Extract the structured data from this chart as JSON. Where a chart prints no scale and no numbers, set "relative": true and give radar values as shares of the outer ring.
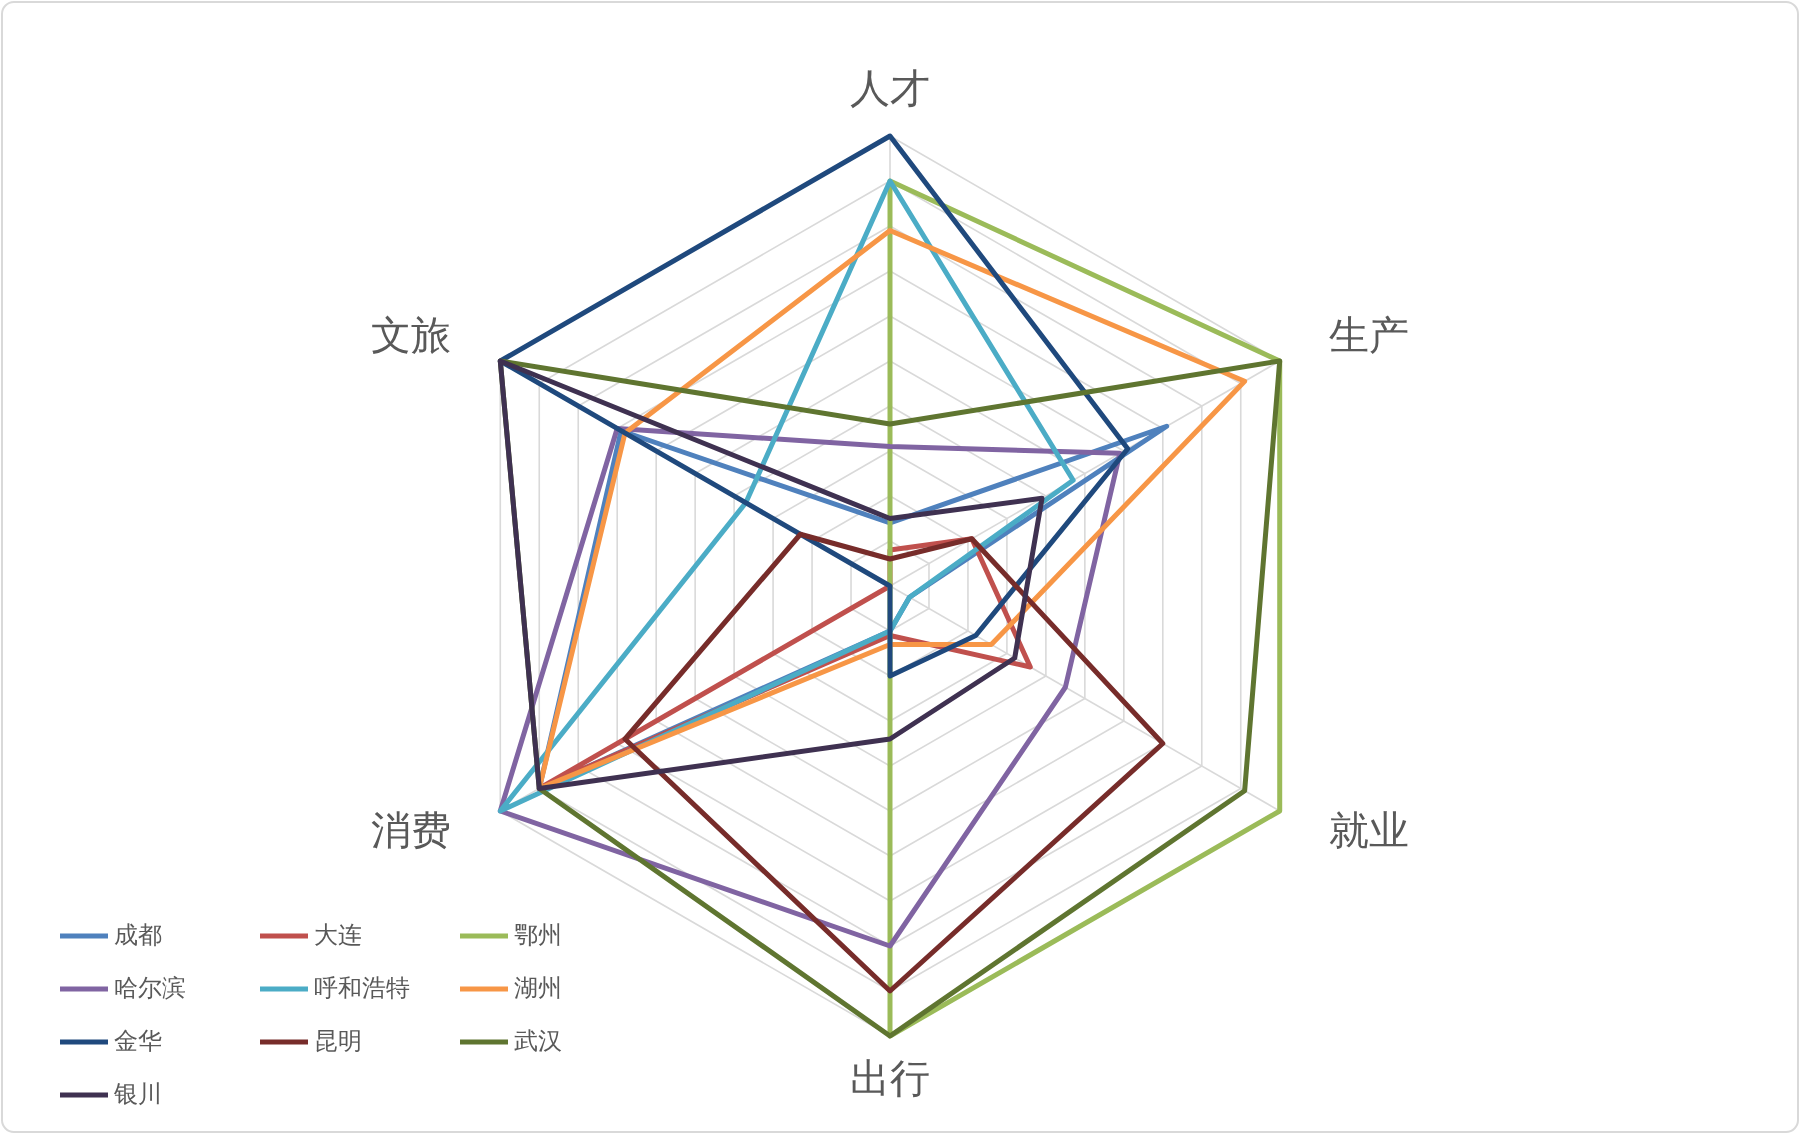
{
  "chart_data": {
    "type": "radar",
    "relative": true,
    "grid": true,
    "legend": "bottom left",
    "line_style": "solid",
    "marker": "none",
    "categories": [
      "人才",
      "生产",
      "就业",
      "出行",
      "消费",
      "文旅"
    ],
    "series": [
      {
        "name": "成都",
        "color": "#4f81bd",
        "values": [
          0.14,
          0.71,
          0.05,
          0.1,
          0.9,
          0.69
        ]
      },
      {
        "name": "大连",
        "color": "#c0504d",
        "values": [
          0.08,
          0.21,
          0.36,
          0.11,
          0.89,
          0
        ]
      },
      {
        "name": "鄂州",
        "color": "#9bbb59",
        "values": [
          0.9,
          1,
          1,
          1,
          0,
          0
        ]
      },
      {
        "name": "哈尔滨",
        "color": "#8064a2",
        "values": [
          0.31,
          0.59,
          0.45,
          0.8,
          1,
          0.7
        ]
      },
      {
        "name": "呼和浩特",
        "color": "#4bacc6",
        "values": [
          0.9,
          0.47,
          0.05,
          0.1,
          1,
          0.37
        ]
      },
      {
        "name": "湖州",
        "color": "#f79646",
        "values": [
          0.79,
          0.91,
          0.26,
          0.13,
          0.9,
          0.68
        ]
      },
      {
        "name": "金华",
        "color": "#1f497d",
        "values": [
          1,
          0.61,
          0.22,
          0.2,
          0,
          1
        ]
      },
      {
        "name": "昆明",
        "color": "#772c2a",
        "values": [
          0.06,
          0.21,
          0.7,
          0.9,
          0.68,
          0.23
        ]
      },
      {
        "name": "武汉",
        "color": "#5f7530",
        "values": [
          0.36,
          1,
          0.91,
          1,
          0.9,
          1
        ]
      },
      {
        "name": "银川",
        "color": "#3f3151",
        "values": [
          0.15,
          0.39,
          0.32,
          0.34,
          0.9,
          1
        ]
      }
    ]
  }
}
